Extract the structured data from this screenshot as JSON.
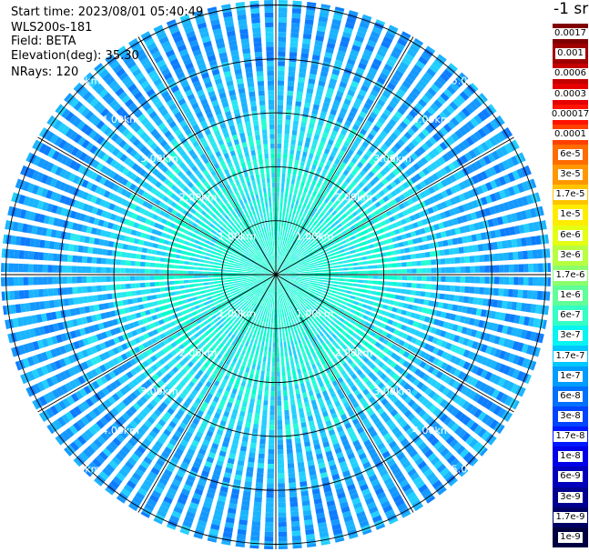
{
  "header": {
    "start_time": "Start time: 2023/08/01 05:40:49",
    "device": "WLS200s-181",
    "field": "Field: BETA",
    "elevation": "Elevation(deg): 35.30",
    "nrays": "NRays: 120"
  },
  "ppi": {
    "ranges_km": [
      1,
      2,
      3,
      4,
      5
    ],
    "range_labels": [
      "1.00km",
      "2.00km",
      "3.00km",
      "4.00km",
      "5.00km"
    ],
    "nrays": 120,
    "spokes_deg": [
      0,
      30,
      60,
      90,
      120,
      150,
      180,
      210,
      240,
      270,
      300,
      330
    ]
  },
  "colorbar": {
    "unit": "-1 sr",
    "levels": [
      {
        "label": "0.0017",
        "color": "#800000"
      },
      {
        "label": "0.001",
        "color": "#a00000"
      },
      {
        "label": "0.0006",
        "color": "#c40000"
      },
      {
        "label": "0.0003",
        "color": "#e60000"
      },
      {
        "label": "0.00017",
        "color": "#ff1400"
      },
      {
        "label": "0.0001",
        "color": "#ff4000"
      },
      {
        "label": "6e-5",
        "color": "#ff6c00"
      },
      {
        "label": "3e-5",
        "color": "#ff9800"
      },
      {
        "label": "1.7e-5",
        "color": "#ffc400"
      },
      {
        "label": "1e-5",
        "color": "#ffec00"
      },
      {
        "label": "6e-6",
        "color": "#e4ff14"
      },
      {
        "label": "3e-6",
        "color": "#b8ff40"
      },
      {
        "label": "1.7e-6",
        "color": "#8cff6c"
      },
      {
        "label": "1e-6",
        "color": "#60ff98"
      },
      {
        "label": "6e-7",
        "color": "#34ffc4"
      },
      {
        "label": "3e-7",
        "color": "#08f4f0"
      },
      {
        "label": "1.7e-7",
        "color": "#00c8ff"
      },
      {
        "label": "1e-7",
        "color": "#009cff"
      },
      {
        "label": "6e-8",
        "color": "#0070ff"
      },
      {
        "label": "3e-8",
        "color": "#0044ff"
      },
      {
        "label": "1.7e-8",
        "color": "#0018ff"
      },
      {
        "label": "1e-8",
        "color": "#0000e8"
      },
      {
        "label": "6e-9",
        "color": "#0000bc"
      },
      {
        "label": "3e-9",
        "color": "#000090"
      },
      {
        "label": "1.7e-9",
        "color": "#000064"
      },
      {
        "label": "1e-9",
        "color": "#000040"
      }
    ]
  }
}
